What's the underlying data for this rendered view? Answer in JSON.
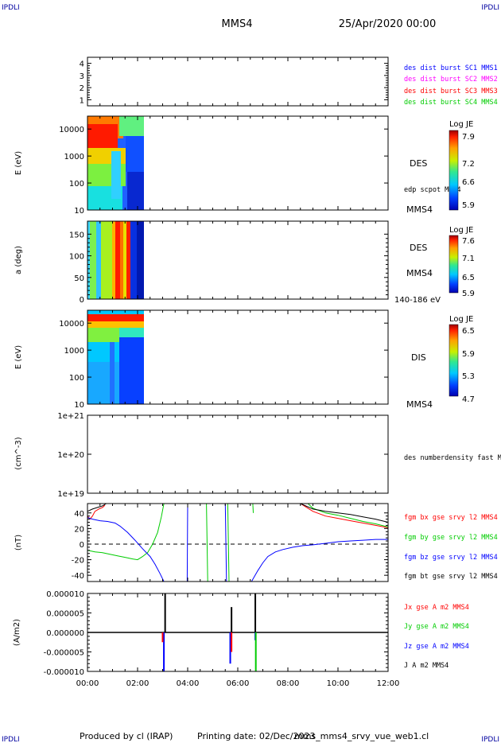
{
  "header": {
    "corner_tl": "IPDLI",
    "corner_tr": "IPDLI",
    "corner_bl": "IPDLI",
    "corner_br": "IPDLI",
    "spacecraft": "MMS4",
    "date": "25/Apr/2020 00:00"
  },
  "footer": {
    "produced": "Produced by cl (IRAP)",
    "printing": "Printing date: 02/Dec/2023",
    "file": "mms_mms4_srvy_vue_web1.cl"
  },
  "colors": {
    "blue": "#0000ff",
    "magenta": "#ff00ff",
    "red": "#ff0000",
    "green": "#00cc00",
    "black": "#000000"
  },
  "chart_data": [
    {
      "type": "line",
      "panel": "burst",
      "ylabel": "",
      "ylim": [
        0.5,
        4.5
      ],
      "yticks": [
        "1",
        "2",
        "3",
        "4"
      ],
      "legend": [
        {
          "label": "des dist burst SC1 MMS1",
          "color": "#0000ff"
        },
        {
          "label": "des dist burst SC2 MMS2",
          "color": "#ff00ff"
        },
        {
          "label": "des dist burst SC3 MMS3",
          "color": "#ff0000"
        },
        {
          "label": "des dist burst SC4 MMS4",
          "color": "#00cc00"
        }
      ],
      "series": []
    },
    {
      "type": "heatmap",
      "panel": "des-energy",
      "ylabel": "E (eV)",
      "yscale": "log",
      "ylim": [
        10,
        30000
      ],
      "yticks": [
        "10",
        "100",
        "1000",
        "10000"
      ],
      "data_end_hours": 2.25,
      "right_labels": [
        "DES",
        "edp scpot MMS4",
        "MMS4"
      ],
      "colorbar": {
        "title": "Log JE",
        "ticks": [
          "7.9",
          "7.2",
          "6.6",
          "5.9"
        ],
        "range": [
          5.9,
          8.1
        ]
      }
    },
    {
      "type": "heatmap",
      "panel": "des-pitch",
      "ylabel": "a (deg)",
      "ylim": [
        0,
        180
      ],
      "yticks": [
        "0",
        "50",
        "100",
        "150"
      ],
      "data_end_hours": 2.25,
      "right_labels": [
        "DES",
        "MMS4",
        "140-186 eV"
      ],
      "colorbar": {
        "title": "Log JE",
        "ticks": [
          "7.6",
          "7.1",
          "6.5",
          "5.9"
        ],
        "range": [
          5.9,
          7.7
        ]
      }
    },
    {
      "type": "heatmap",
      "panel": "dis-energy",
      "ylabel": "E (eV)",
      "yscale": "log",
      "ylim": [
        10,
        30000
      ],
      "yticks": [
        "10",
        "100",
        "1000",
        "10000"
      ],
      "data_end_hours": 2.25,
      "right_labels": [
        "DIS",
        "MMS4"
      ],
      "colorbar": {
        "title": "Log JE",
        "ticks": [
          "6.5",
          "5.9",
          "5.3",
          "4.7"
        ],
        "range": [
          4.7,
          6.7
        ]
      }
    },
    {
      "type": "line",
      "panel": "density",
      "ylabel": "(cm^-3)",
      "yscale": "log",
      "ylim": [
        1e+19,
        1e+21
      ],
      "yticks": [
        "1e+19",
        "1e+20",
        "1e+21"
      ],
      "legend": [
        {
          "label": "des numberdensity fast M",
          "color": "#000000"
        }
      ],
      "series": []
    },
    {
      "type": "line",
      "panel": "fgm",
      "ylabel": "(nT)",
      "ylim": [
        -48,
        52
      ],
      "yticks": [
        "-40",
        "-20",
        "0",
        "20",
        "40"
      ],
      "zero_line": true,
      "legend": [
        {
          "label": "fgm bx gse srvy l2 MMS4",
          "color": "#ff0000"
        },
        {
          "label": "fgm by gse srvy l2 MMS4",
          "color": "#00cc00"
        },
        {
          "label": "fgm bz gse srvy l2 MMS4",
          "color": "#0000ff"
        },
        {
          "label": "fgm bt gse srvy l2 MMS4",
          "color": "#000000"
        }
      ],
      "series": [
        {
          "color": "#ff0000",
          "segments": [
            [
              [
                0.0,
                36
              ],
              [
                0.1,
                32
              ],
              [
                0.2,
                36
              ],
              [
                0.3,
                42
              ],
              [
                0.45,
                45
              ],
              [
                0.6,
                47
              ],
              [
                0.7,
                50
              ]
            ],
            [
              [
                8.5,
                52
              ],
              [
                9.0,
                42
              ],
              [
                9.5,
                36
              ],
              [
                10.0,
                33
              ],
              [
                10.5,
                30
              ],
              [
                11.0,
                27
              ],
              [
                11.5,
                24
              ],
              [
                12.0,
                21
              ]
            ]
          ]
        },
        {
          "color": "#00cc00",
          "segments": [
            [
              [
                0.0,
                -8
              ],
              [
                0.3,
                -10
              ],
              [
                0.6,
                -11
              ],
              [
                0.9,
                -13
              ],
              [
                1.2,
                -15
              ],
              [
                1.5,
                -17
              ],
              [
                1.8,
                -19
              ],
              [
                2.0,
                -20
              ],
              [
                2.2,
                -16
              ],
              [
                2.4,
                -11
              ],
              [
                2.6,
                0
              ],
              [
                2.8,
                15
              ],
              [
                2.95,
                35
              ],
              [
                3.05,
                52
              ]
            ],
            [
              [
                4.75,
                52
              ],
              [
                4.8,
                -48
              ]
            ],
            [
              [
                5.6,
                52
              ],
              [
                5.65,
                -48
              ]
            ],
            [
              [
                6.6,
                52
              ],
              [
                6.62,
                40
              ]
            ],
            [
              [
                8.8,
                52
              ],
              [
                9.0,
                46
              ],
              [
                9.5,
                40
              ],
              [
                10.0,
                37
              ],
              [
                10.5,
                33
              ],
              [
                11.0,
                29
              ],
              [
                11.5,
                26
              ],
              [
                12.0,
                22
              ]
            ]
          ]
        },
        {
          "color": "#0000ff",
          "segments": [
            [
              [
                0.0,
                34
              ],
              [
                0.2,
                32
              ],
              [
                0.5,
                30
              ],
              [
                0.8,
                29
              ],
              [
                1.1,
                27
              ],
              [
                1.3,
                23
              ],
              [
                1.6,
                15
              ],
              [
                1.9,
                5
              ],
              [
                2.2,
                -6
              ],
              [
                2.5,
                -16
              ],
              [
                2.7,
                -26
              ],
              [
                2.9,
                -38
              ],
              [
                3.05,
                -48
              ]
            ],
            [
              [
                3.98,
                -48
              ],
              [
                4.0,
                52
              ]
            ],
            [
              [
                5.5,
                52
              ],
              [
                5.55,
                -48
              ]
            ],
            [
              [
                6.55,
                -48
              ],
              [
                6.8,
                -34
              ],
              [
                7.0,
                -24
              ],
              [
                7.2,
                -16
              ],
              [
                7.5,
                -10
              ],
              [
                7.8,
                -7
              ],
              [
                8.2,
                -4
              ],
              [
                8.6,
                -2
              ],
              [
                9.0,
                -1
              ],
              [
                9.5,
                1
              ],
              [
                10.0,
                3
              ],
              [
                10.5,
                4
              ],
              [
                11.0,
                5
              ],
              [
                11.5,
                6
              ],
              [
                12.0,
                6
              ]
            ]
          ]
        },
        {
          "color": "#000000",
          "segments": [
            [
              [
                0.0,
                42
              ],
              [
                0.2,
                45
              ],
              [
                0.4,
                47
              ],
              [
                0.6,
                49
              ],
              [
                0.75,
                52
              ]
            ],
            [
              [
                8.5,
                52
              ],
              [
                9.0,
                45
              ],
              [
                9.5,
                42
              ],
              [
                10.0,
                40
              ],
              [
                10.5,
                38
              ],
              [
                11.0,
                35
              ],
              [
                11.5,
                32
              ],
              [
                12.0,
                28
              ]
            ]
          ]
        }
      ]
    },
    {
      "type": "line",
      "panel": "current",
      "ylabel": "(A/m2)",
      "ylim": [
        -1e-05,
        1e-05
      ],
      "yticks": [
        "-0.000010",
        "-0.000005",
        "0.000000",
        "0.000005",
        "0.000010"
      ],
      "xlabel": "",
      "xticks": [
        "00:00",
        "02:00",
        "04:00",
        "06:00",
        "08:00",
        "10:00",
        "12:00"
      ],
      "legend": [
        {
          "label": "Jx gse A m2 MMS4",
          "color": "#ff0000"
        },
        {
          "label": "Jy gse A m2 MMS4",
          "color": "#00cc00"
        },
        {
          "label": "Jz gse A m2 MMS4",
          "color": "#0000ff"
        },
        {
          "label": "J A m2 MMS4",
          "color": "#000000"
        }
      ],
      "series": [
        {
          "color": "#0000ff",
          "spikes": [
            [
              3.05,
              -1e-05
            ],
            [
              5.7,
              -8e-06
            ],
            [
              6.7,
              -2e-06
            ]
          ]
        },
        {
          "color": "#ff0000",
          "spikes": [
            [
              3.0,
              -2.5e-06
            ],
            [
              5.75,
              -5e-06
            ]
          ]
        },
        {
          "color": "#00cc00",
          "spikes": [
            [
              6.72,
              -1e-05
            ]
          ]
        },
        {
          "color": "#000000",
          "spikes": [
            [
              3.1,
              1e-05
            ],
            [
              5.75,
              6.5e-06
            ],
            [
              6.7,
              1e-05
            ]
          ]
        }
      ]
    }
  ]
}
